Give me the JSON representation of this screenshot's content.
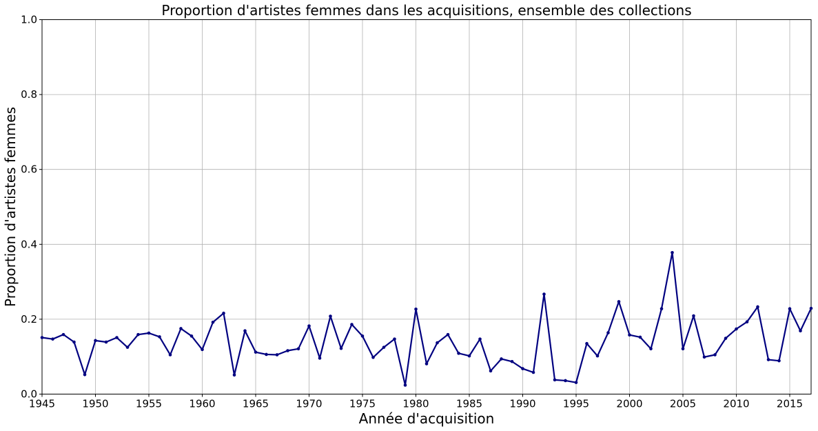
{
  "chart_data": {
    "type": "line",
    "title": "Proportion d'artistes femmes dans les acquisitions, ensemble des collections",
    "xlabel": "Année d'acquisition",
    "ylabel": "Proportion d'artistes femmes",
    "xlim": [
      1945,
      2017
    ],
    "ylim": [
      0,
      1.0
    ],
    "grid": true,
    "color": "#000080",
    "x_ticks": [
      "1945",
      "1950",
      "1955",
      "1960",
      "1965",
      "1970",
      "1975",
      "1980",
      "1985",
      "1990",
      "1995",
      "2000",
      "2005",
      "2010",
      "2015"
    ],
    "y_ticks": [
      "0.0",
      "0.2",
      "0.4",
      "0.6",
      "0.8",
      "1.0"
    ],
    "series": [
      {
        "x": [
          1945,
          1946,
          1947,
          1948,
          1949,
          1950,
          1951,
          1952,
          1953,
          1954,
          1955,
          1956,
          1957,
          1958,
          1959,
          1960,
          1961,
          1962,
          1963,
          1964,
          1965,
          1966,
          1967,
          1968,
          1969,
          1970,
          1971,
          1972,
          1973,
          1974,
          1975,
          1976,
          1977,
          1978,
          1979,
          1980,
          1981,
          1982,
          1983,
          1984,
          1985,
          1986,
          1987,
          1988,
          1989,
          1990,
          1991,
          1992,
          1993,
          1994,
          1995,
          1996,
          1997,
          1998,
          1999,
          2000,
          2001,
          2002,
          2003,
          2004,
          2005,
          2006,
          2007,
          2008,
          2009,
          2010,
          2011,
          2012,
          2013,
          2014,
          2015,
          2016,
          2017
        ],
        "y": [
          0.151,
          0.147,
          0.159,
          0.139,
          0.052,
          0.143,
          0.139,
          0.151,
          0.125,
          0.159,
          0.163,
          0.153,
          0.105,
          0.175,
          0.155,
          0.119,
          0.192,
          0.216,
          0.051,
          0.169,
          0.112,
          0.106,
          0.105,
          0.116,
          0.121,
          0.182,
          0.096,
          0.208,
          0.122,
          0.186,
          0.155,
          0.098,
          0.125,
          0.147,
          0.024,
          0.227,
          0.081,
          0.137,
          0.159,
          0.109,
          0.102,
          0.147,
          0.062,
          0.094,
          0.087,
          0.068,
          0.058,
          0.267,
          0.038,
          0.036,
          0.031,
          0.135,
          0.102,
          0.164,
          0.247,
          0.158,
          0.152,
          0.121,
          0.228,
          0.378,
          0.121,
          0.209,
          0.099,
          0.105,
          0.149,
          0.174,
          0.193,
          0.233,
          0.092,
          0.089,
          0.228,
          0.169,
          0.229
        ]
      }
    ]
  }
}
